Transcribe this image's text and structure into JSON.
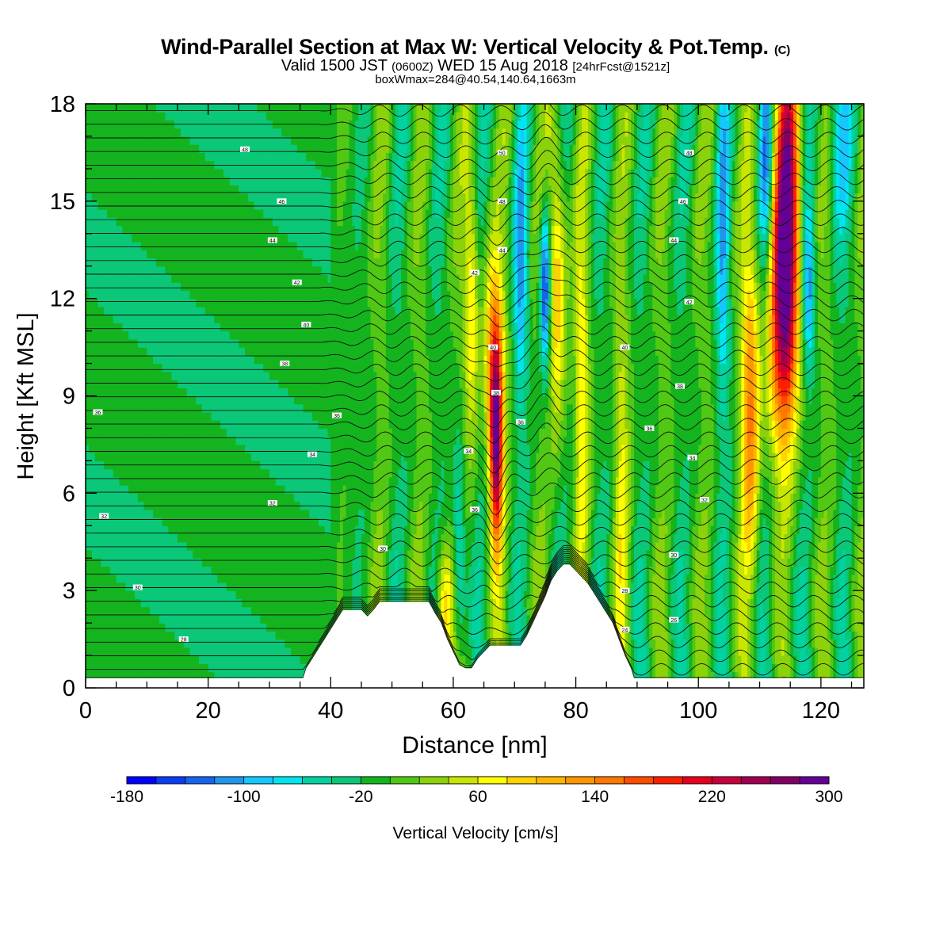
{
  "title": {
    "main": "Wind-Parallel Section at Max W: Vertical Velocity & Pot.Temp.",
    "mark": "(C)",
    "valid_prefix": "Valid 1500 JST",
    "valid_utc": "(0600Z)",
    "valid_date": "WED 15 Aug 2018",
    "forecast": "[24hrFcst@1521z]",
    "box_info": "boxWmax=284@40.54,140.64,1663m"
  },
  "chart_data": {
    "type": "heatmap",
    "xlabel": "Distance [nm]",
    "ylabel": "Height [Kft MSL]",
    "xlim": [
      0,
      127
    ],
    "ylim": [
      0,
      18
    ],
    "x_ticks": [
      "0",
      "20",
      "40",
      "60",
      "80",
      "100",
      "120"
    ],
    "y_ticks": [
      "0",
      "3",
      "6",
      "9",
      "12",
      "15",
      "18"
    ],
    "colorbar": {
      "label": "Vertical Velocity [cm/s]",
      "tick_labels": [
        "-180",
        "-100",
        "-20",
        "60",
        "140",
        "220",
        "300"
      ],
      "colors": [
        "#0000ff",
        "#0a3cf5",
        "#1464f0",
        "#1e96eb",
        "#14c8ff",
        "#00e6f0",
        "#00d2a0",
        "#0ac878",
        "#14b41e",
        "#50c814",
        "#8cd20a",
        "#c8e600",
        "#ffff00",
        "#ffd200",
        "#ffb400",
        "#ff9600",
        "#ff7800",
        "#ff4b00",
        "#ff1e00",
        "#e6001e",
        "#c8003c",
        "#a00050",
        "#820064",
        "#640096"
      ]
    },
    "updrafts_cms": [
      {
        "x_nm": 67,
        "peak": 284,
        "z_kft": [
          4.5,
          11.5
        ]
      },
      {
        "x_nm": 114,
        "peak": 260,
        "z_kft": [
          9,
          18
        ]
      },
      {
        "x_nm": 75.5,
        "peak": -160,
        "z_kft": [
          10,
          15
        ]
      }
    ],
    "terrain_kft": [
      [
        0,
        0.3
      ],
      [
        35.5,
        0.3
      ],
      [
        36,
        0.6
      ],
      [
        37,
        0.9
      ],
      [
        38,
        1.2
      ],
      [
        39,
        1.5
      ],
      [
        40,
        1.8
      ],
      [
        41,
        2.1
      ],
      [
        42,
        2.4
      ],
      [
        45,
        2.4
      ],
      [
        46,
        2.2
      ],
      [
        47,
        2.4
      ],
      [
        48,
        2.65
      ],
      [
        56,
        2.65
      ],
      [
        57,
        2.3
      ],
      [
        58,
        2.0
      ],
      [
        59,
        1.5
      ],
      [
        60,
        1.1
      ],
      [
        61,
        0.7
      ],
      [
        62,
        0.6
      ],
      [
        63,
        0.6
      ],
      [
        64,
        0.9
      ],
      [
        65,
        1.1
      ],
      [
        66,
        1.3
      ],
      [
        71,
        1.3
      ],
      [
        72,
        1.6
      ],
      [
        73,
        2.0
      ],
      [
        74,
        2.4
      ],
      [
        75,
        2.8
      ],
      [
        76,
        3.3
      ],
      [
        77,
        3.6
      ],
      [
        78,
        3.8
      ],
      [
        79,
        3.8
      ],
      [
        80,
        3.6
      ],
      [
        81,
        3.4
      ],
      [
        82,
        3.2
      ],
      [
        83,
        2.9
      ],
      [
        84,
        2.6
      ],
      [
        85,
        2.3
      ],
      [
        86,
        2.0
      ],
      [
        87,
        1.5
      ],
      [
        88,
        1.0
      ],
      [
        89,
        0.6
      ],
      [
        89.5,
        0.3
      ],
      [
        127,
        0.3
      ]
    ],
    "theta_labels": [
      {
        "x": 26,
        "z": 16.6,
        "t": "48"
      },
      {
        "x": 32,
        "z": 15.0,
        "t": "46"
      },
      {
        "x": 30.5,
        "z": 13.8,
        "t": "44"
      },
      {
        "x": 34.5,
        "z": 12.5,
        "t": "42"
      },
      {
        "x": 36,
        "z": 11.2,
        "t": "40"
      },
      {
        "x": 32.5,
        "z": 10.0,
        "t": "38"
      },
      {
        "x": 2,
        "z": 8.5,
        "t": "36"
      },
      {
        "x": 41,
        "z": 8.4,
        "t": "36"
      },
      {
        "x": 37,
        "z": 7.2,
        "t": "34"
      },
      {
        "x": 3,
        "z": 5.3,
        "t": "32"
      },
      {
        "x": 30.5,
        "z": 5.7,
        "t": "32"
      },
      {
        "x": 8.5,
        "z": 3.1,
        "t": "30"
      },
      {
        "x": 16,
        "z": 1.5,
        "t": "28"
      },
      {
        "x": 48.5,
        "z": 4.3,
        "t": "30"
      },
      {
        "x": 68,
        "z": 16.5,
        "t": "50"
      },
      {
        "x": 68,
        "z": 15.0,
        "t": "48"
      },
      {
        "x": 68,
        "z": 13.5,
        "t": "44"
      },
      {
        "x": 63.5,
        "z": 12.8,
        "t": "42"
      },
      {
        "x": 66.5,
        "z": 10.5,
        "t": "40"
      },
      {
        "x": 67,
        "z": 9.1,
        "t": "38"
      },
      {
        "x": 71,
        "z": 8.2,
        "t": "36"
      },
      {
        "x": 62.5,
        "z": 7.3,
        "t": "34"
      },
      {
        "x": 63.5,
        "z": 5.5,
        "t": "36"
      },
      {
        "x": 98.5,
        "z": 16.5,
        "t": "48"
      },
      {
        "x": 97.5,
        "z": 15.0,
        "t": "46"
      },
      {
        "x": 96,
        "z": 13.8,
        "t": "44"
      },
      {
        "x": 98.5,
        "z": 11.9,
        "t": "42"
      },
      {
        "x": 88,
        "z": 10.5,
        "t": "40"
      },
      {
        "x": 97,
        "z": 9.3,
        "t": "38"
      },
      {
        "x": 92,
        "z": 8.0,
        "t": "36"
      },
      {
        "x": 99,
        "z": 7.1,
        "t": "34"
      },
      {
        "x": 101,
        "z": 5.8,
        "t": "32"
      },
      {
        "x": 96,
        "z": 4.1,
        "t": "30"
      },
      {
        "x": 88,
        "z": 3.0,
        "t": "28"
      },
      {
        "x": 96,
        "z": 2.1,
        "t": "26"
      },
      {
        "x": 88,
        "z": 1.8,
        "t": "24"
      }
    ]
  }
}
